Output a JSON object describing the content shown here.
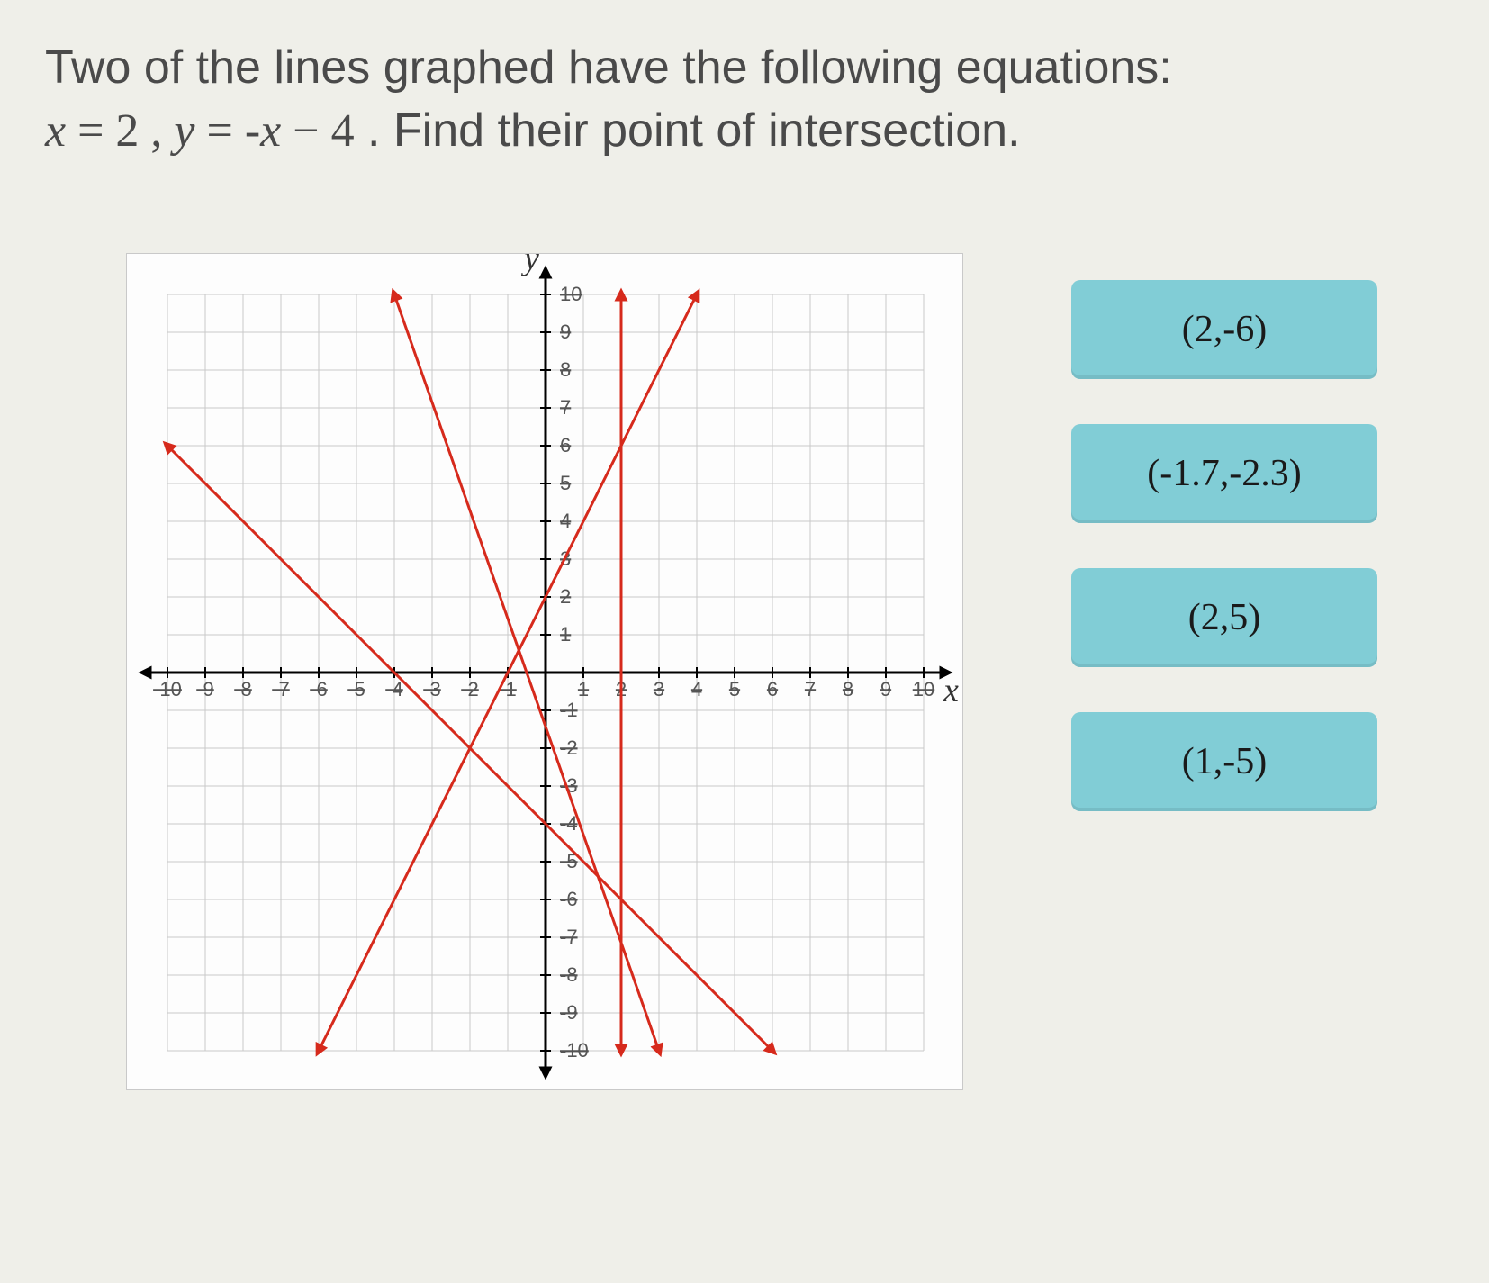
{
  "question": {
    "prefix": "Two of the lines graphed have the following equations:",
    "eq1_lhs": "x",
    "eq1_eq": " = ",
    "eq1_rhs": "2",
    "sep": " , ",
    "eq2_lhs": "y",
    "eq2_eq": " = ",
    "eq2_rhs_a": " -x",
    "eq2_rhs_b": " − ",
    "eq2_rhs_c": "4",
    "suffix": " . Find their point of intersection."
  },
  "chart": {
    "type": "line",
    "xlim": [
      -10,
      10
    ],
    "ylim": [
      -10,
      10
    ],
    "xtick_step": 1,
    "ytick_step": 1,
    "x_label": "x",
    "y_label": "y",
    "background_color": "#fdfdfd",
    "grid_color": "#c9c9c9",
    "axis_color": "#000000",
    "tick_font_size": 22,
    "axis_label_font_size": 38,
    "line_color": "#d62a1c",
    "line_width": 3,
    "arrow_size": 12,
    "lines": [
      {
        "name": "x_eq_2",
        "x1": 2,
        "y1": -10,
        "x2": 2,
        "y2": 10,
        "arrows": "both"
      },
      {
        "name": "y_eq_negx_minus4",
        "x1": -10,
        "y1": 6,
        "x2": 6,
        "y2": -10,
        "arrows": "both"
      },
      {
        "name": "line3",
        "x1": -6,
        "y1": -10,
        "x2": 4,
        "y2": 10,
        "arrows": "both"
      },
      {
        "name": "line4",
        "x1": -4,
        "y1": 10,
        "x2": 3,
        "y2": -10,
        "arrows": "both"
      }
    ],
    "x_ticks_neg": [
      "-10",
      "-9",
      "-8",
      "-7",
      "-6",
      "-5",
      "-4",
      "-3",
      "-2",
      "-1"
    ],
    "x_ticks_pos": [
      "1",
      "2",
      "3",
      "4",
      "5",
      "6",
      "7",
      "8",
      "9",
      "10"
    ],
    "y_ticks_neg": [
      "-1",
      "-2",
      "-3",
      "-4",
      "-5",
      "-6",
      "-7",
      "-8",
      "-9",
      "-10"
    ],
    "y_ticks_pos": [
      "1",
      "2",
      "3",
      "4",
      "5",
      "6",
      "7",
      "8",
      "9",
      "10"
    ]
  },
  "answers": [
    {
      "label": "(2,-6)"
    },
    {
      "label": "(-1.7,-2.3)"
    },
    {
      "label": "(2,5)"
    },
    {
      "label": "(1,-5)"
    }
  ],
  "colors": {
    "button_bg": "#81cdd6",
    "button_text": "#1a1a1a"
  }
}
